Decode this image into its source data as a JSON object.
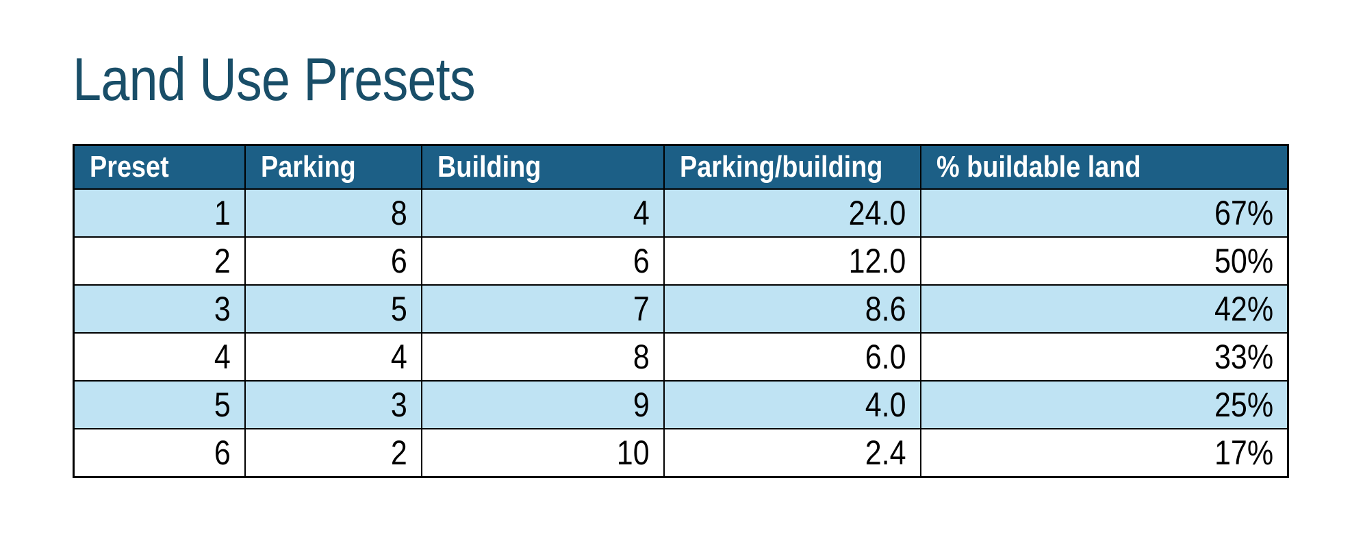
{
  "page": {
    "title": "Land Use Presets"
  },
  "colors": {
    "title_text": "#194E68",
    "header_bg": "#1C5F86",
    "header_text": "#FFFFFF",
    "band_row_bg": "#BFE3F3",
    "plain_row_bg": "#FFFFFF",
    "border": "#000000",
    "body_text": "#000000"
  },
  "table": {
    "column_keys": [
      "preset",
      "parking",
      "building",
      "parking-per-building",
      "pct-buildable-land"
    ],
    "headers": [
      "Preset",
      "Parking",
      "Building",
      "Parking/building",
      "% buildable land"
    ],
    "rows": [
      [
        "1",
        "8",
        "4",
        "24.0",
        "67%"
      ],
      [
        "2",
        "6",
        "6",
        "12.0",
        "50%"
      ],
      [
        "3",
        "5",
        "7",
        "8.6",
        "42%"
      ],
      [
        "4",
        "4",
        "8",
        "6.0",
        "33%"
      ],
      [
        "5",
        "3",
        "9",
        "4.0",
        "25%"
      ],
      [
        "6",
        "2",
        "10",
        "2.4",
        "17%"
      ]
    ]
  }
}
